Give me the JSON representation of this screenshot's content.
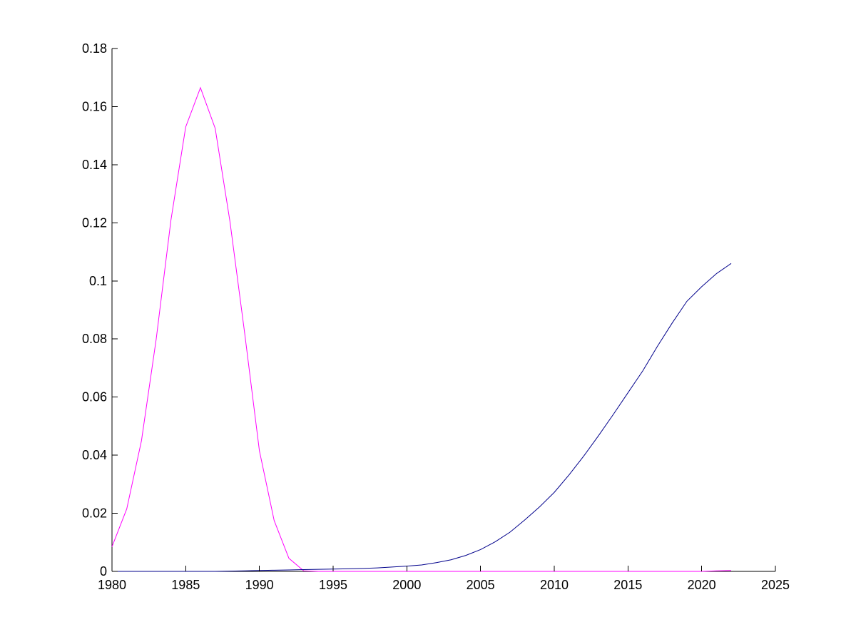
{
  "chart_data": {
    "type": "line",
    "title": "",
    "xlabel": "",
    "ylabel": "",
    "xlim": [
      1980,
      2025
    ],
    "ylim": [
      0,
      0.18
    ],
    "grid": false,
    "legend": "none",
    "x_ticks": [
      "1980",
      "1985",
      "1990",
      "1995",
      "2000",
      "2005",
      "2010",
      "2015",
      "2020",
      "2025"
    ],
    "y_ticks": [
      "0",
      "0.02",
      "0.04",
      "0.06",
      "0.08",
      "0.1",
      "0.12",
      "0.14",
      "0.16",
      "0.18"
    ],
    "series": [
      {
        "color": "#ff00ff",
        "x": [
          1980,
          1981,
          1982,
          1983,
          1984,
          1985,
          1986,
          1987,
          1988,
          1989,
          1990,
          1991,
          1992,
          1993,
          1994,
          1995,
          1996,
          1997,
          1998,
          1999,
          2000,
          2001,
          2002,
          2003,
          2004,
          2005,
          2006,
          2007,
          2008,
          2009,
          2010,
          2011,
          2012,
          2013,
          2014,
          2015,
          2016,
          2017,
          2018,
          2019,
          2020,
          2021,
          2022
        ],
        "y": [
          0.0085,
          0.0215,
          0.045,
          0.08,
          0.121,
          0.153,
          0.1665,
          0.1525,
          0.1205,
          0.082,
          0.0415,
          0.0175,
          0.0045,
          0.0002,
          0,
          0,
          0,
          0,
          0,
          0,
          0,
          0,
          0,
          0,
          0,
          0,
          0,
          0,
          0,
          0,
          0,
          0,
          0,
          0,
          0,
          0,
          0,
          0,
          0,
          0,
          0,
          0.0002,
          0.0003
        ]
      },
      {
        "color": "#00008b",
        "x": [
          1980,
          1981,
          1982,
          1983,
          1984,
          1985,
          1986,
          1987,
          1988,
          1989,
          1990,
          1991,
          1992,
          1993,
          1994,
          1995,
          1996,
          1997,
          1998,
          1999,
          2000,
          2001,
          2002,
          2003,
          2004,
          2005,
          2006,
          2007,
          2008,
          2009,
          2010,
          2011,
          2012,
          2013,
          2014,
          2015,
          2016,
          2017,
          2018,
          2019,
          2020,
          2021,
          2022
        ],
        "y": [
          0,
          0,
          0,
          0,
          0,
          0,
          0,
          0,
          0.0001,
          0.0002,
          0.0003,
          0.0004,
          0.0005,
          0.0006,
          0.0007,
          0.0008,
          0.0009,
          0.001,
          0.0012,
          0.0015,
          0.0018,
          0.0022,
          0.003,
          0.004,
          0.0055,
          0.0075,
          0.0102,
          0.0135,
          0.0177,
          0.0222,
          0.0272,
          0.0332,
          0.0397,
          0.0467,
          0.054,
          0.0615,
          0.069,
          0.0775,
          0.0855,
          0.093,
          0.098,
          0.1025,
          0.106
        ]
      }
    ]
  }
}
